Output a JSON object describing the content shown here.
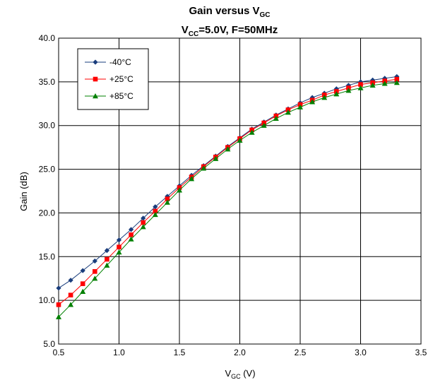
{
  "chart_data": {
    "type": "line",
    "title": {
      "main": "Gain versus V",
      "main_sub": "GC"
    },
    "subtitle": {
      "a": "V",
      "a_sub": "CC",
      "b": "=5.0V, F=50MHz"
    },
    "xlabel": {
      "main": "V",
      "sub": "GC",
      "unit": " (V)"
    },
    "ylabel": "Gain (dB)",
    "xlim": [
      0.5,
      3.5
    ],
    "ylim": [
      5.0,
      40.0
    ],
    "x_ticks": [
      "0.5",
      "1.0",
      "1.5",
      "2.0",
      "2.5",
      "3.0",
      "3.5"
    ],
    "y_ticks": [
      "5.0",
      "10.0",
      "15.0",
      "20.0",
      "25.0",
      "30.0",
      "35.0",
      "40.0"
    ],
    "grid": true,
    "legend_position": "top-left",
    "x": [
      0.5,
      0.6,
      0.7,
      0.8,
      0.9,
      1.0,
      1.1,
      1.2,
      1.3,
      1.4,
      1.5,
      1.6,
      1.7,
      1.8,
      1.9,
      2.0,
      2.1,
      2.2,
      2.3,
      2.4,
      2.5,
      2.6,
      2.7,
      2.8,
      2.9,
      3.0,
      3.1,
      3.2,
      3.3
    ],
    "series": [
      {
        "name": "-40°C",
        "color": "#1a3d7c",
        "marker": "diamond",
        "values": [
          11.4,
          12.3,
          13.4,
          14.5,
          15.7,
          16.9,
          18.1,
          19.4,
          20.7,
          21.9,
          23.1,
          24.3,
          25.4,
          26.5,
          27.6,
          28.6,
          29.6,
          30.4,
          31.2,
          31.9,
          32.6,
          33.2,
          33.7,
          34.2,
          34.6,
          35.0,
          35.2,
          35.4,
          35.6
        ]
      },
      {
        "name": "+25°C",
        "color": "#ff0000",
        "marker": "square",
        "values": [
          9.5,
          10.6,
          11.9,
          13.3,
          14.7,
          16.1,
          17.5,
          18.9,
          20.2,
          21.6,
          22.9,
          24.1,
          25.3,
          26.4,
          27.5,
          28.5,
          29.5,
          30.3,
          31.1,
          31.8,
          32.4,
          32.9,
          33.5,
          33.9,
          34.3,
          34.7,
          34.9,
          35.1,
          35.3
        ]
      },
      {
        "name": "+85°C",
        "color": "#008000",
        "marker": "triangle",
        "values": [
          8.1,
          9.5,
          11.0,
          12.5,
          14.0,
          15.5,
          17.0,
          18.4,
          19.8,
          21.2,
          22.6,
          23.9,
          25.1,
          26.2,
          27.3,
          28.3,
          29.2,
          30.0,
          30.8,
          31.5,
          32.1,
          32.7,
          33.2,
          33.6,
          34.0,
          34.3,
          34.6,
          34.8,
          34.9
        ]
      }
    ]
  }
}
